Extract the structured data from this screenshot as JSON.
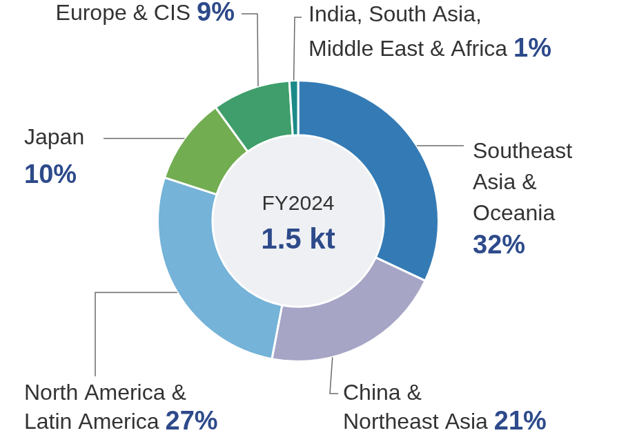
{
  "chart_data": {
    "type": "doughnut",
    "center_title": "FY2024",
    "center_value": "1.5 kt",
    "categories": [
      "Southeast Asia & Oceania",
      "China & Northeast Asia",
      "North America & Latin America",
      "Japan",
      "Europe & CIS",
      "India, South Asia, Middle East & Africa"
    ],
    "values": [
      32,
      21,
      27,
      10,
      9,
      1
    ],
    "value_labels": [
      "32%",
      "21%",
      "27%",
      "10%",
      "9%",
      "1%"
    ],
    "colors": [
      "#347bb5",
      "#a7a5c6",
      "#75b3d8",
      "#72ad52",
      "#3f9e6b",
      "#1b8a88"
    ],
    "data_labels": true
  }
}
